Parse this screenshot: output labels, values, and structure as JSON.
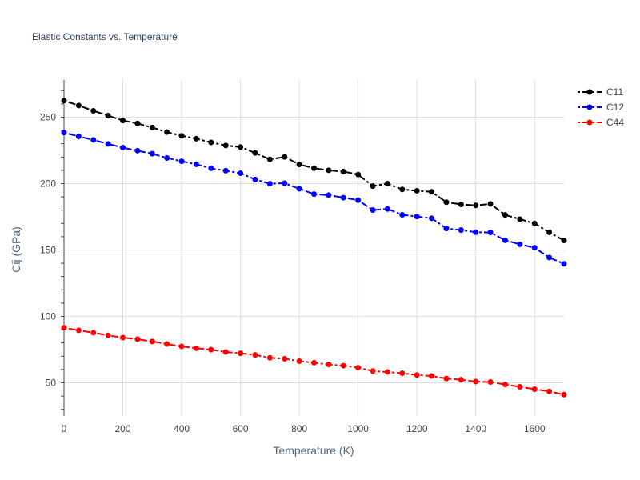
{
  "chart_data": {
    "type": "line",
    "title": "Elastic Constants vs. Temperature",
    "xlabel": "Temperature (K)",
    "ylabel": "Cij (GPa)",
    "xlim": [
      0,
      1700
    ],
    "ylim": [
      25,
      278
    ],
    "x_ticks": [
      0,
      200,
      400,
      600,
      800,
      1000,
      1200,
      1400,
      1600
    ],
    "y_ticks": [
      50,
      100,
      150,
      200,
      250
    ],
    "grid": true,
    "legend_position": "top-right",
    "line_style": "dash-dot",
    "x": [
      0,
      50,
      100,
      150,
      200,
      250,
      300,
      350,
      400,
      450,
      500,
      550,
      600,
      650,
      700,
      750,
      800,
      850,
      900,
      950,
      1000,
      1050,
      1100,
      1150,
      1200,
      1250,
      1300,
      1350,
      1400,
      1450,
      1500,
      1550,
      1600,
      1650,
      1700
    ],
    "series": [
      {
        "name": "C11",
        "color": "#000000",
        "values": [
          262.5,
          258.8,
          254.8,
          251.2,
          247.5,
          245.3,
          242.2,
          238.8,
          236.0,
          233.8,
          231.0,
          228.7,
          227.5,
          223.1,
          218.2,
          220.1,
          214.4,
          211.6,
          210.0,
          209.1,
          206.8,
          198.1,
          200.0,
          195.6,
          194.6,
          193.8,
          186.0,
          184.3,
          183.6,
          184.7,
          176.4,
          173.2,
          170.0,
          163.3,
          157.2
        ]
      },
      {
        "name": "C12",
        "color": "#0000ff",
        "values": [
          238.4,
          235.5,
          232.9,
          229.9,
          227.1,
          224.8,
          222.5,
          219.3,
          216.8,
          214.5,
          211.5,
          209.7,
          207.8,
          203.1,
          199.9,
          200.3,
          196.1,
          192.1,
          191.3,
          189.4,
          187.5,
          180.1,
          180.9,
          176.5,
          175.2,
          173.9,
          166.2,
          165.0,
          163.4,
          163.2,
          157.3,
          154.3,
          151.7,
          144.3,
          139.6
        ]
      },
      {
        "name": "C44",
        "color": "#ff0000",
        "values": [
          91.4,
          89.5,
          87.7,
          85.7,
          84.0,
          82.8,
          81.1,
          79.2,
          77.4,
          76.0,
          74.9,
          73.2,
          72.2,
          71.0,
          68.8,
          68.1,
          66.3,
          65.1,
          63.8,
          62.9,
          61.4,
          58.9,
          58.1,
          57.2,
          55.9,
          55.1,
          53.2,
          52.3,
          50.9,
          50.6,
          48.7,
          47.0,
          45.2,
          43.5,
          41.1
        ]
      }
    ]
  }
}
